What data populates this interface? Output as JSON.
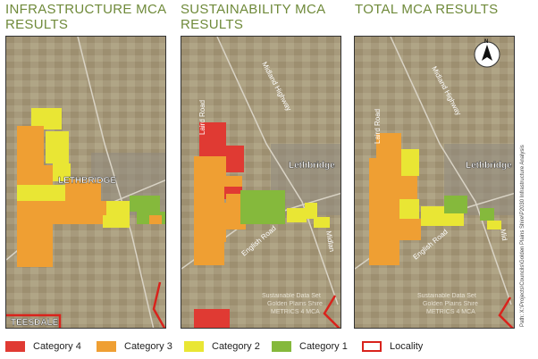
{
  "panels": [
    {
      "title_line1": "INFRASTRUCTURE MCA",
      "title_line2": "RESULTS",
      "labels": {
        "town": "LETHBRIDGE",
        "town2": "TEESDALE"
      }
    },
    {
      "title_line1": "SUSTAINABILITY MCA",
      "title_line2": "RESULTS",
      "labels": {
        "town": "Lethbridge",
        "road_laird": "Laird Road",
        "road_midland": "Midland Highway",
        "road_english": "English Road",
        "road_midland2": "Midlan",
        "watermark1": "Sustainable Data Set",
        "watermark2": "Golden Plains Shire",
        "watermark3": "METRICS 4 MCA"
      }
    },
    {
      "title_line1": "TOTAL MCA RESULTS",
      "title_line2": "",
      "labels": {
        "town": "Lethbridge",
        "road_laird": "Laird Road",
        "road_midland": "Midland Highway",
        "road_english": "English Road",
        "road_midland2": "Mid",
        "watermark1": "Sustainable Data Set",
        "watermark2": "Golden Plains Shire",
        "watermark3": "METRICS 4 MCA",
        "north": "N",
        "path_note": "Path: X:\\Projects\\Councils\\Golden Plains Shire\\P2030 Infrastructure Analysis"
      }
    }
  ],
  "legend": [
    {
      "label": "Category 4",
      "color": "#e03a33",
      "outline": false
    },
    {
      "label": "Category 3",
      "color": "#ef9f33",
      "outline": false
    },
    {
      "label": "Category 2",
      "color": "#e9e634",
      "outline": false
    },
    {
      "label": "Category 1",
      "color": "#85b93c",
      "outline": false
    },
    {
      "label": "Locality",
      "color": "#d9231c",
      "outline": true
    }
  ],
  "colors": {
    "title": "#6f8a3a",
    "cat4": "#e03a33",
    "cat3": "#ef9f33",
    "cat2": "#e9e634",
    "cat1": "#85b93c",
    "locality": "#d9231c",
    "terrain": "#a09275"
  }
}
